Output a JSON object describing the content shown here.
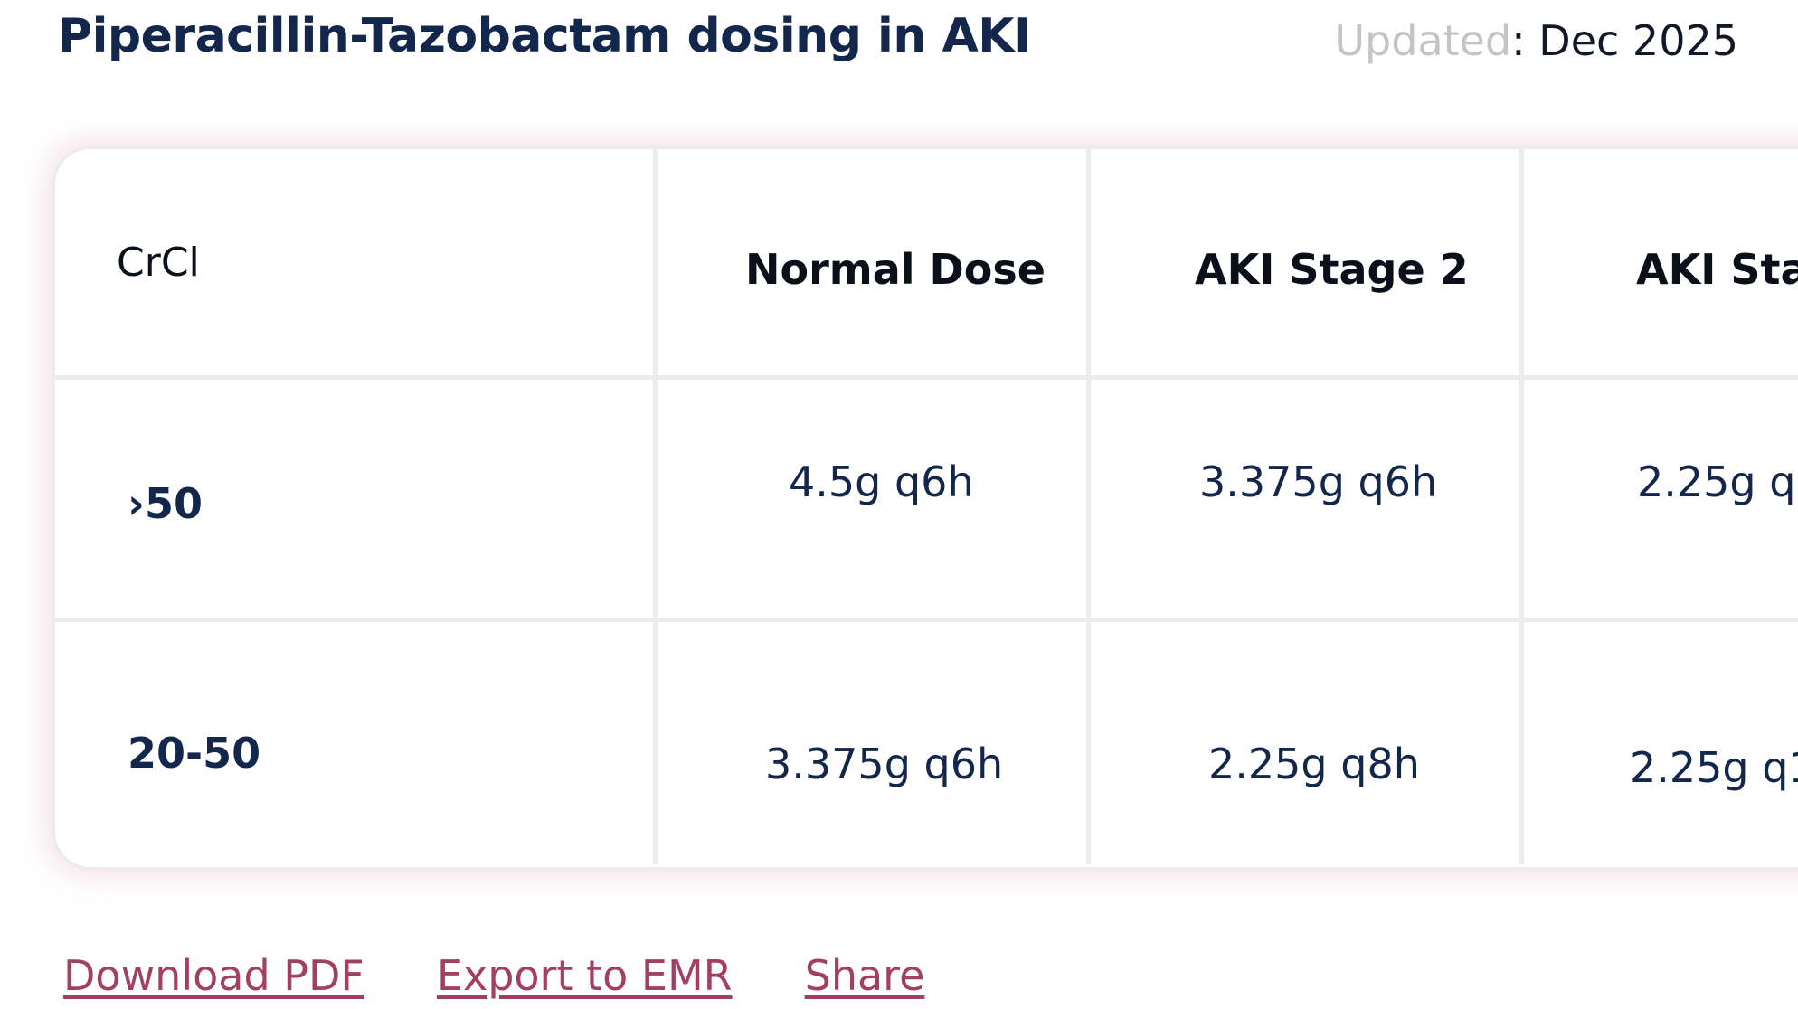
{
  "title": "Piperacillin-Tazobactam dosing in AKI",
  "updated": {
    "label": "Updated",
    "colon": ":",
    "value": " Dec 2025"
  },
  "table": {
    "headers": [
      "CrCl",
      "Normal Dose",
      "AKI Stage 2",
      "AKI Sta"
    ],
    "rows": [
      {
        "label": "›50",
        "values": [
          "4.5g q6h",
          "3.375g q6h",
          "2.25g q"
        ]
      },
      {
        "label": "20-50",
        "values": [
          "3.375g q6h",
          "2.25g q8h",
          "2.25g q1"
        ]
      }
    ]
  },
  "actions": {
    "download": "Download PDF",
    "export": "Export to EMR",
    "share": "Share"
  },
  "colors": {
    "title": "#13264b",
    "link": "#a3405f",
    "border": "#ececef",
    "glow": "#dda0b2"
  }
}
